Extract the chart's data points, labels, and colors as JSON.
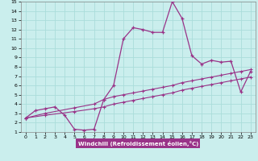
{
  "xlabel": "Windchill (Refroidissement éolien,°C)",
  "bg_color": "#caeeed",
  "grid_color": "#aaddda",
  "line_color": "#993388",
  "xlim": [
    -0.5,
    23.5
  ],
  "ylim": [
    1,
    15
  ],
  "xticks": [
    0,
    1,
    2,
    3,
    4,
    5,
    6,
    7,
    8,
    9,
    10,
    11,
    12,
    13,
    14,
    15,
    16,
    17,
    18,
    19,
    20,
    21,
    22,
    23
  ],
  "yticks": [
    1,
    2,
    3,
    4,
    5,
    6,
    7,
    8,
    9,
    10,
    11,
    12,
    13,
    14,
    15
  ],
  "curve1_x": [
    0,
    1,
    2,
    3,
    4,
    5,
    6,
    7,
    8,
    9,
    10,
    11,
    12,
    13,
    14,
    15,
    16,
    17,
    18,
    19,
    20,
    21,
    22,
    23
  ],
  "curve1_y": [
    2.5,
    3.3,
    3.5,
    3.7,
    2.8,
    1.3,
    1.2,
    1.3,
    4.5,
    6.0,
    11.0,
    12.2,
    12.0,
    11.7,
    11.7,
    15.0,
    13.2,
    9.2,
    8.3,
    8.7,
    8.5,
    8.6,
    5.3,
    7.5
  ],
  "curve2_x": [
    0,
    2,
    5,
    7,
    8,
    9,
    10,
    11,
    12,
    13,
    14,
    15,
    16,
    17,
    18,
    19,
    20,
    21,
    22,
    23
  ],
  "curve2_y": [
    2.5,
    3.0,
    3.6,
    4.0,
    4.5,
    4.8,
    5.0,
    5.2,
    5.4,
    5.6,
    5.8,
    6.0,
    6.3,
    6.5,
    6.7,
    6.9,
    7.1,
    7.3,
    7.5,
    7.7
  ],
  "curve3_x": [
    0,
    2,
    5,
    7,
    8,
    9,
    10,
    11,
    12,
    13,
    14,
    15,
    16,
    17,
    18,
    19,
    20,
    21,
    22,
    23
  ],
  "curve3_y": [
    2.5,
    2.8,
    3.2,
    3.5,
    3.7,
    4.0,
    4.2,
    4.4,
    4.6,
    4.8,
    5.0,
    5.2,
    5.5,
    5.7,
    5.9,
    6.1,
    6.3,
    6.5,
    6.7,
    6.9
  ]
}
